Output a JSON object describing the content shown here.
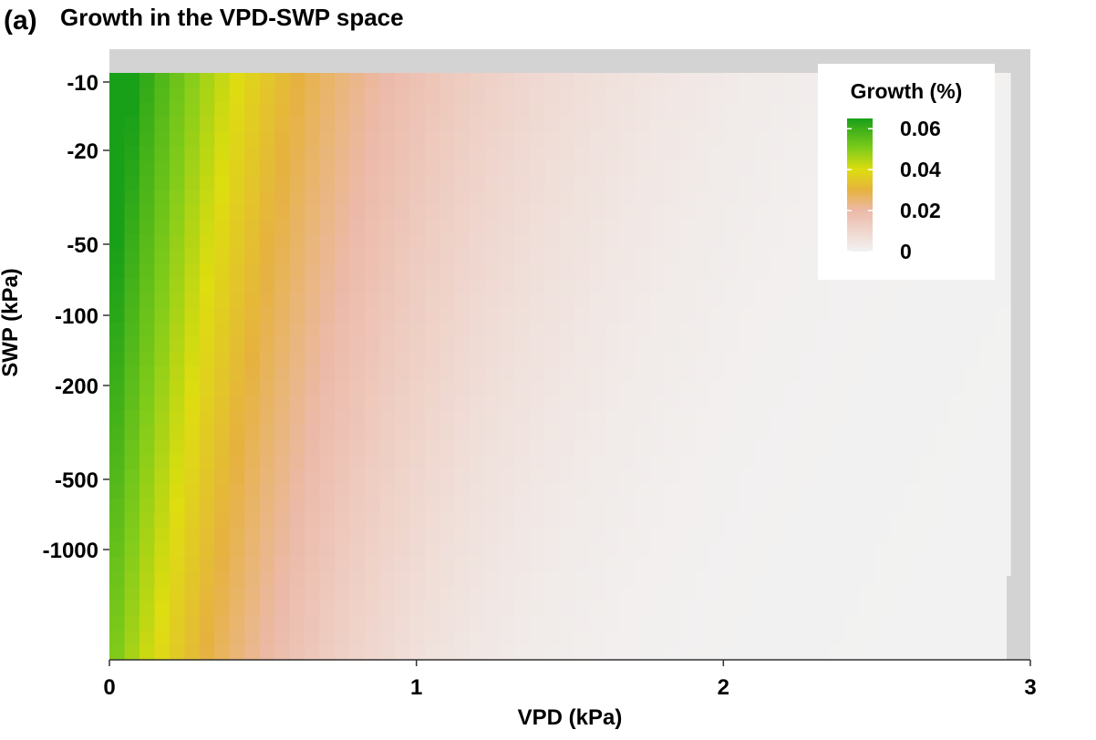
{
  "chart_data": {
    "type": "heatmap",
    "panel_label": "(a)",
    "title": "Growth in the VPD-SWP space",
    "xlabel": "VPD (kPa)",
    "ylabel": "SWP (kPa)",
    "x_ticks": [
      0,
      1,
      2,
      3
    ],
    "xlim": [
      0,
      3
    ],
    "y_ticks": [
      "-10",
      "-20",
      "-50",
      "-100",
      "-200",
      "-500",
      "-1000"
    ],
    "legend": {
      "title": "Growth (%)",
      "position": "top-right",
      "labels": [
        "0.06",
        "0.04",
        "0.02",
        "0"
      ],
      "values": [
        0.06,
        0.04,
        0.02,
        0
      ],
      "max": 0.065
    },
    "color_scale": {
      "stops": [
        {
          "value": 0.0,
          "color": "#f2f2f2"
        },
        {
          "value": 0.02,
          "color": "#ecb9a8"
        },
        {
          "value": 0.03,
          "color": "#e6b23f"
        },
        {
          "value": 0.04,
          "color": "#dedd10"
        },
        {
          "value": 0.05,
          "color": "#82cc1a"
        },
        {
          "value": 0.065,
          "color": "#19a019"
        }
      ]
    },
    "surface_note": "Growth is highest (~0.06) at low VPD and wet soil (SWP near -10 to -100 kPa) and declines toward 0 as VPD rises above ~1.5 kPa and SWP drops below -1000 kPa.",
    "colors": {
      "panel_background": "#d3d3d3",
      "missing": "#d3d3d3"
    }
  }
}
